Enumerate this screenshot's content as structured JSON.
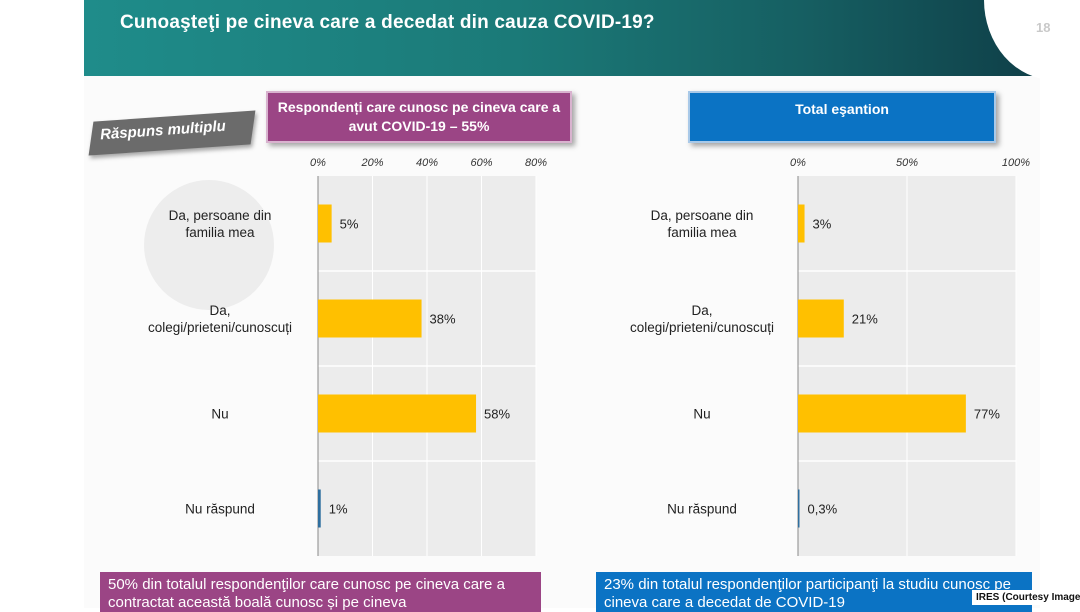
{
  "title": "Cunoaşteţi pe cineva care a decedat din cauza COVID-19?",
  "page_number": "18",
  "badge": "Răspuns multiplu",
  "left_panel": {
    "header": "Respondenți care cunosc pe cineva care a avut COVID-19 – 55%",
    "note": "50% din totalul respondenţilor care cunosc pe cineva care a contractat această boală cunosc și pe cineva"
  },
  "right_panel": {
    "header": "Total eşantion",
    "note": "23% din totalul respondenţilor participanţi la studiu cunosc pe cineva care a decedat de COVID-19"
  },
  "credit": "IRES (Courtesy Image)",
  "colors": {
    "bar": "#ffc000",
    "left_accent": "#9b4585",
    "right_accent": "#0b73c4",
    "header": "#1b7a78"
  },
  "chart_data": [
    {
      "type": "bar",
      "orientation": "horizontal",
      "title": "Respondenți care cunosc pe cineva care a avut COVID-19 – 55%",
      "categories": [
        "Da, persoane din familia mea",
        "Da, colegi/prieteni/cunoscuți",
        "Nu",
        "Nu răspund"
      ],
      "values": [
        5,
        38,
        58,
        1
      ],
      "value_labels": [
        "5%",
        "38%",
        "58%",
        "1%"
      ],
      "xlim": [
        0,
        80
      ],
      "ticks": [
        0,
        20,
        40,
        60,
        80
      ],
      "tick_labels": [
        "0%",
        "20%",
        "40%",
        "60%",
        "80%"
      ]
    },
    {
      "type": "bar",
      "orientation": "horizontal",
      "title": "Total eşantion",
      "categories": [
        "Da, persoane din familia mea",
        "Da, colegi/prieteni/cunoscuți",
        "Nu",
        "Nu răspund"
      ],
      "values": [
        3,
        21,
        77,
        0.3
      ],
      "value_labels": [
        "3%",
        "21%",
        "77%",
        "0,3%"
      ],
      "xlim": [
        0,
        100
      ],
      "ticks": [
        0,
        50,
        100
      ],
      "tick_labels": [
        "0%",
        "50%",
        "100%"
      ]
    }
  ]
}
